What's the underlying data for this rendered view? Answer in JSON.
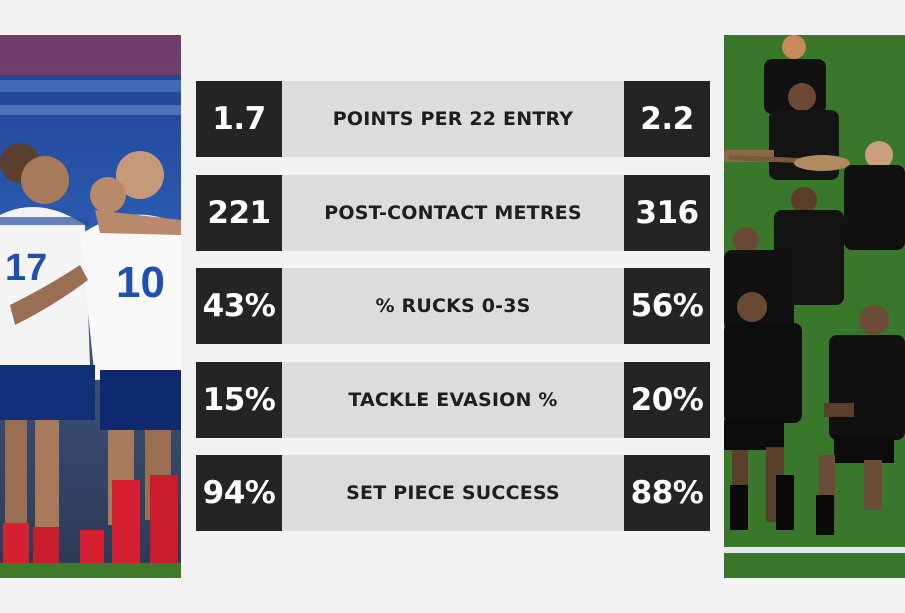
{
  "stats": [
    {
      "label": "POINTS PER 22 ENTRY",
      "left": "1.7",
      "right": "2.2"
    },
    {
      "label": "POST-CONTACT METRES",
      "left": "221",
      "right": "316"
    },
    {
      "label": "% RUCKS 0-3S",
      "left": "43%",
      "right": "56%"
    },
    {
      "label": "TACKLE EVASION %",
      "left": "15%",
      "right": "20%"
    },
    {
      "label": "SET PIECE SUCCESS",
      "left": "94%",
      "right": "88%"
    }
  ],
  "left_team": {
    "jersey_numbers": [
      "17",
      "10"
    ],
    "jersey_color": "#ffffff",
    "shorts_color": "#0f2a6e",
    "socks_color": "#d42030"
  },
  "right_team": {
    "jersey_color": "#111111",
    "pitch_color": "#3e7d2e"
  },
  "colors": {
    "value_box": "#242424",
    "label_bar": "#dcdcdc",
    "background": "#f2f2f2"
  }
}
